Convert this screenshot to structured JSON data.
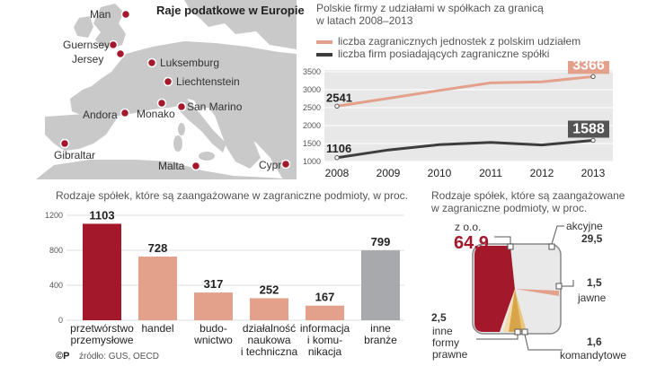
{
  "colors": {
    "dark_red": "#a3192b",
    "salmon": "#e3a18c",
    "salmon_light": "#eab4a4",
    "gray_bar": "#a7a9ac",
    "dark_line": "#3d3d3d",
    "map_land": "#c9c9c9",
    "map_sea": "#ffffff",
    "panel_bg": "#e8e8e8",
    "gold": "#e8c77a"
  },
  "map": {
    "title": "Raje podatkowe w Europie",
    "places": [
      {
        "name": "Man"
      },
      {
        "name": "Guernsey"
      },
      {
        "name": "Jersey"
      },
      {
        "name": "Luksemburg"
      },
      {
        "name": "Liechtenstein"
      },
      {
        "name": "Andora"
      },
      {
        "name": "Monako"
      },
      {
        "name": "San Marino"
      },
      {
        "name": "Gibraltar"
      },
      {
        "name": "Malta"
      },
      {
        "name": "Cypr"
      }
    ]
  },
  "line_chart": {
    "title_line1": "Polskie firmy z udziałami w spółkach za granicą",
    "title_line2": "w latach 2008–2013",
    "chart_data": {
      "type": "line",
      "x": [
        "2008",
        "2009",
        "2010",
        "2011",
        "2012",
        "2013"
      ],
      "series": [
        {
          "name": "liczba zagranicznych jednostek z polskim udziałem",
          "values": [
            2541,
            2760,
            2980,
            3190,
            3220,
            3366
          ]
        },
        {
          "name": "liczba firm posiadających zagraniczne spółki",
          "values": [
            1106,
            1320,
            1470,
            1530,
            1460,
            1588
          ]
        }
      ],
      "y_ticks": [
        "3500",
        "3000",
        "2500",
        "2000",
        "1500",
        "1000"
      ],
      "ylim": [
        1000,
        3500
      ],
      "labels": {
        "first_top": "2541",
        "last_top": "3366",
        "first_bottom": "1106",
        "last_bottom": "1588"
      }
    }
  },
  "bar_chart": {
    "title": "Rodzaje spółek, które są zaangażowane w zagraniczne podmioty, w proc.",
    "chart_data": {
      "type": "bar",
      "categories": [
        [
          "przetwórstwo",
          "przemysłowe"
        ],
        [
          "handel"
        ],
        [
          "budo-",
          "wnictwo"
        ],
        [
          "działalność",
          "naukowa",
          "i techniczna"
        ],
        [
          "informacja",
          "i komu-",
          "nikacja"
        ],
        [
          "inne",
          "branże"
        ]
      ],
      "values": [
        1103,
        728,
        317,
        252,
        167,
        799
      ],
      "value_labels": [
        "1103",
        "728",
        "317",
        "252",
        "167",
        "799"
      ],
      "y_ticks": [
        "1200",
        "800",
        "400",
        "0"
      ],
      "ylim": [
        0,
        1200
      ]
    }
  },
  "pie_chart": {
    "title_line1": "Rodzaje spółek, które są zaangażowane",
    "title_line2": "w zagraniczne podmioty, w proc.",
    "chart_data": {
      "type": "pie",
      "slices": [
        {
          "label": "z o.o.",
          "value": "64,9"
        },
        {
          "label": "akcyjne",
          "value": "29,5"
        },
        {
          "label": "jawne",
          "value": "1,5"
        },
        {
          "label": "komandytowe",
          "value": "1,6"
        },
        {
          "label": "inne formy prawne",
          "value": "2,5"
        }
      ],
      "label_lines": {
        "zoo": "z o.o.",
        "akcyjne": "akcyjne",
        "jawne": "jawne",
        "komandytowe": "komandytowe",
        "inne1": "inne",
        "inne2": "formy",
        "inne3": "prawne"
      }
    }
  },
  "footer": {
    "logo": "©P",
    "source": "źródło: GUS, OECD"
  }
}
